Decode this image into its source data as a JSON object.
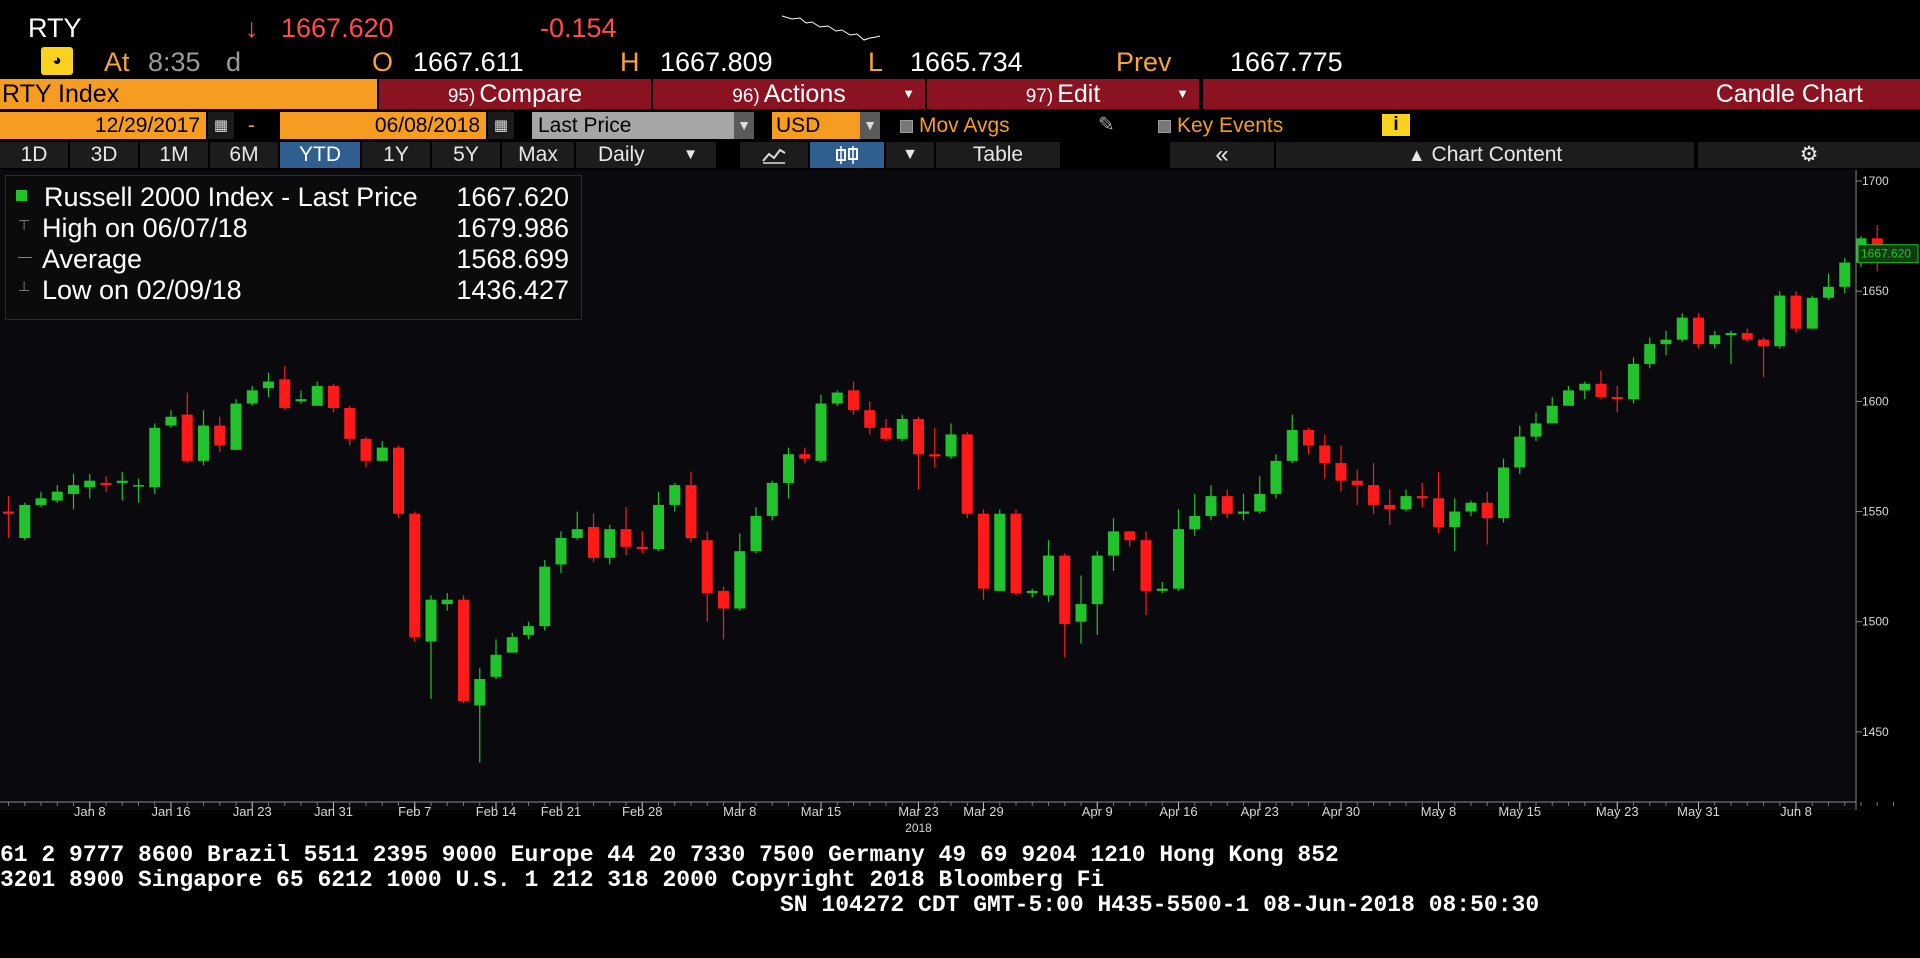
{
  "quote": {
    "ticker": "RTY",
    "arrow": "↓",
    "last": "1667.620",
    "change": "-0.154",
    "at_label": "At",
    "time": "8:35",
    "time_suffix": "d",
    "o_label": "O",
    "o_value": "1667.611",
    "h_label": "H",
    "h_value": "1667.809",
    "l_label": "L",
    "l_value": "1665.734",
    "prev_label": "Prev",
    "prev_value": "1667.775"
  },
  "toolbar": {
    "security": "RTY Index",
    "compare_num": "95)",
    "compare": "Compare",
    "actions_num": "96)",
    "actions": "Actions",
    "edit_num": "97)",
    "edit": "Edit",
    "chart_type": "Candle Chart"
  },
  "range": {
    "start": "12/29/2017",
    "dash": "-",
    "end": "06/08/2018",
    "field": "Last Price",
    "currency": "USD",
    "mov_avgs": "Mov Avgs",
    "key_events": "Key Events",
    "info": "i"
  },
  "periods": [
    "1D",
    "3D",
    "1M",
    "6M",
    "YTD",
    "1Y",
    "5Y",
    "Max"
  ],
  "selected_period": "YTD",
  "frequency": "Daily",
  "table_label": "Table",
  "chart_content_label": "Chart Content",
  "legend": {
    "series": "Russell 2000 Index - Last Price",
    "series_value": "1667.620",
    "high_label": "High on 06/07/18",
    "high_value": "1679.986",
    "avg_label": "Average",
    "avg_value": "1568.699",
    "low_label": "Low on 02/09/18",
    "low_value": "1436.427"
  },
  "colors": {
    "up": "#22c22d",
    "down": "#ff1a1a",
    "accent": "#f59c21",
    "bar_red": "#8b1220"
  },
  "chart_data": {
    "type": "candlestick",
    "ylim": [
      1420,
      1705
    ],
    "y_ticks": [
      1450,
      1500,
      1550,
      1600,
      1650,
      1700
    ],
    "x_ticks": [
      "Jan 8",
      "Jan 16",
      "Jan 23",
      "Jan 31",
      "Feb 7",
      "Feb 14",
      "Feb 21",
      "Feb 28",
      "Mar 8",
      "Mar 15",
      "Mar 23",
      "Mar 29",
      "Apr 9",
      "Apr 16",
      "Apr 23",
      "Apr 30",
      "May 8",
      "May 15",
      "May 23",
      "May 31",
      "Jun 8"
    ],
    "year_label": "2018",
    "last_price_label": "1667.620",
    "candles": [
      [
        1550,
        1549,
        1557,
        1538
      ],
      [
        1538,
        1553,
        1554,
        1537
      ],
      [
        1553,
        1556,
        1559,
        1552
      ],
      [
        1555,
        1559,
        1562,
        1554
      ],
      [
        1558,
        1562,
        1567,
        1551
      ],
      [
        1561,
        1564,
        1567,
        1556
      ],
      [
        1563,
        1562,
        1566,
        1559
      ],
      [
        1563,
        1564,
        1568,
        1555
      ],
      [
        1562,
        1562,
        1565,
        1554
      ],
      [
        1561,
        1588,
        1590,
        1558
      ],
      [
        1589,
        1593,
        1596,
        1588
      ],
      [
        1594,
        1573,
        1604,
        1572
      ],
      [
        1573,
        1589,
        1596,
        1571
      ],
      [
        1589,
        1580,
        1593,
        1577
      ],
      [
        1578,
        1599,
        1601,
        1578
      ],
      [
        1599,
        1605,
        1607,
        1598
      ],
      [
        1606,
        1609,
        1613,
        1602
      ],
      [
        1610,
        1597,
        1616,
        1596
      ],
      [
        1600,
        1601,
        1605,
        1599
      ],
      [
        1598,
        1607,
        1609,
        1598
      ],
      [
        1607,
        1597,
        1608,
        1595
      ],
      [
        1597,
        1583,
        1598,
        1580
      ],
      [
        1583,
        1573,
        1584,
        1570
      ],
      [
        1573,
        1579,
        1582,
        1573
      ],
      [
        1579,
        1549,
        1580,
        1547
      ],
      [
        1549,
        1493,
        1550,
        1491
      ],
      [
        1491,
        1510,
        1512,
        1465
      ],
      [
        1508,
        1510,
        1513,
        1505
      ],
      [
        1510,
        1464,
        1512,
        1463
      ],
      [
        1462,
        1474,
        1479,
        1436
      ],
      [
        1475,
        1485,
        1492,
        1474
      ],
      [
        1486,
        1493,
        1495,
        1486
      ],
      [
        1494,
        1498,
        1500,
        1492
      ],
      [
        1498,
        1525,
        1528,
        1496
      ],
      [
        1526,
        1538,
        1541,
        1522
      ],
      [
        1538,
        1542,
        1550,
        1537
      ],
      [
        1543,
        1529,
        1549,
        1527
      ],
      [
        1529,
        1542,
        1544,
        1526
      ],
      [
        1542,
        1534,
        1552,
        1530
      ],
      [
        1534,
        1533,
        1541,
        1531
      ],
      [
        1533,
        1553,
        1559,
        1532
      ],
      [
        1553,
        1562,
        1563,
        1550
      ],
      [
        1562,
        1538,
        1568,
        1536
      ],
      [
        1537,
        1513,
        1541,
        1500
      ],
      [
        1514,
        1506,
        1516,
        1492
      ],
      [
        1506,
        1532,
        1540,
        1505
      ],
      [
        1532,
        1548,
        1552,
        1531
      ],
      [
        1548,
        1563,
        1564,
        1546
      ],
      [
        1563,
        1576,
        1579,
        1556
      ],
      [
        1576,
        1574,
        1579,
        1572
      ],
      [
        1573,
        1599,
        1603,
        1572
      ],
      [
        1599,
        1604,
        1605,
        1598
      ],
      [
        1605,
        1596,
        1609,
        1594
      ],
      [
        1596,
        1588,
        1600,
        1585
      ],
      [
        1588,
        1583,
        1592,
        1582
      ],
      [
        1583,
        1592,
        1594,
        1582
      ],
      [
        1592,
        1576,
        1593,
        1560
      ],
      [
        1576,
        1575,
        1588,
        1570
      ],
      [
        1575,
        1585,
        1590,
        1574
      ],
      [
        1585,
        1549,
        1586,
        1547
      ],
      [
        1549,
        1515,
        1551,
        1510
      ],
      [
        1514,
        1549,
        1551,
        1514
      ],
      [
        1549,
        1513,
        1551,
        1512
      ],
      [
        1513,
        1514,
        1515,
        1511
      ],
      [
        1512,
        1530,
        1537,
        1509
      ],
      [
        1530,
        1499,
        1531,
        1484
      ],
      [
        1500,
        1508,
        1521,
        1490
      ],
      [
        1508,
        1530,
        1532,
        1494
      ],
      [
        1530,
        1541,
        1547,
        1523
      ],
      [
        1541,
        1537,
        1541,
        1534
      ],
      [
        1537,
        1514,
        1541,
        1503
      ],
      [
        1514,
        1515,
        1518,
        1513
      ],
      [
        1515,
        1542,
        1551,
        1514
      ],
      [
        1542,
        1548,
        1558,
        1539
      ],
      [
        1548,
        1557,
        1562,
        1546
      ],
      [
        1557,
        1549,
        1560,
        1547
      ],
      [
        1549,
        1550,
        1558,
        1546
      ],
      [
        1550,
        1558,
        1566,
        1549
      ],
      [
        1558,
        1573,
        1576,
        1556
      ],
      [
        1573,
        1587,
        1594,
        1572
      ],
      [
        1587,
        1580,
        1588,
        1576
      ],
      [
        1580,
        1572,
        1585,
        1565
      ],
      [
        1572,
        1564,
        1580,
        1559
      ],
      [
        1564,
        1562,
        1569,
        1553
      ],
      [
        1562,
        1553,
        1572,
        1549
      ],
      [
        1553,
        1551,
        1560,
        1544
      ],
      [
        1551,
        1557,
        1560,
        1550
      ],
      [
        1557,
        1556,
        1563,
        1552
      ],
      [
        1556,
        1543,
        1568,
        1540
      ],
      [
        1543,
        1550,
        1556,
        1532
      ],
      [
        1550,
        1554,
        1555,
        1548
      ],
      [
        1554,
        1547,
        1559,
        1535
      ],
      [
        1547,
        1570,
        1574,
        1545
      ],
      [
        1570,
        1584,
        1589,
        1567
      ],
      [
        1584,
        1590,
        1595,
        1582
      ],
      [
        1590,
        1598,
        1602,
        1590
      ],
      [
        1598,
        1605,
        1607,
        1598
      ],
      [
        1605,
        1608,
        1609,
        1601
      ],
      [
        1608,
        1602,
        1614,
        1601
      ],
      [
        1602,
        1601,
        1607,
        1595
      ],
      [
        1601,
        1617,
        1620,
        1599
      ],
      [
        1617,
        1626,
        1629,
        1615
      ],
      [
        1626,
        1628,
        1632,
        1621
      ],
      [
        1628,
        1638,
        1640,
        1627
      ],
      [
        1638,
        1626,
        1640,
        1624
      ],
      [
        1626,
        1630,
        1632,
        1624
      ],
      [
        1630,
        1631,
        1632,
        1617
      ],
      [
        1631,
        1628,
        1633,
        1627
      ],
      [
        1628,
        1625,
        1629,
        1611
      ],
      [
        1625,
        1648,
        1650,
        1624
      ],
      [
        1648,
        1633,
        1650,
        1631
      ],
      [
        1633,
        1647,
        1648,
        1633
      ],
      [
        1647,
        1652,
        1658,
        1646
      ],
      [
        1652,
        1663,
        1665,
        1649
      ],
      [
        1663,
        1674,
        1675,
        1661
      ],
      [
        1674,
        1665,
        1680,
        1659
      ],
      [
        1667,
        1667,
        1668,
        1666
      ]
    ]
  },
  "footer": {
    "line1": "61 2 9777 8600 Brazil 5511 2395 9000 Europe 44 20 7330 7500 Germany 49 69 9204 1210 Hong Kong 852",
    "line2": " 3201 8900         Singapore 65 6212 1000         U.S. 1 212 318 2000         Copyright 2018 Bloomberg Fi",
    "line3": "SN 104272 CDT  GMT-5:00 H435-5500-1 08-Jun-2018 08:50:30"
  }
}
